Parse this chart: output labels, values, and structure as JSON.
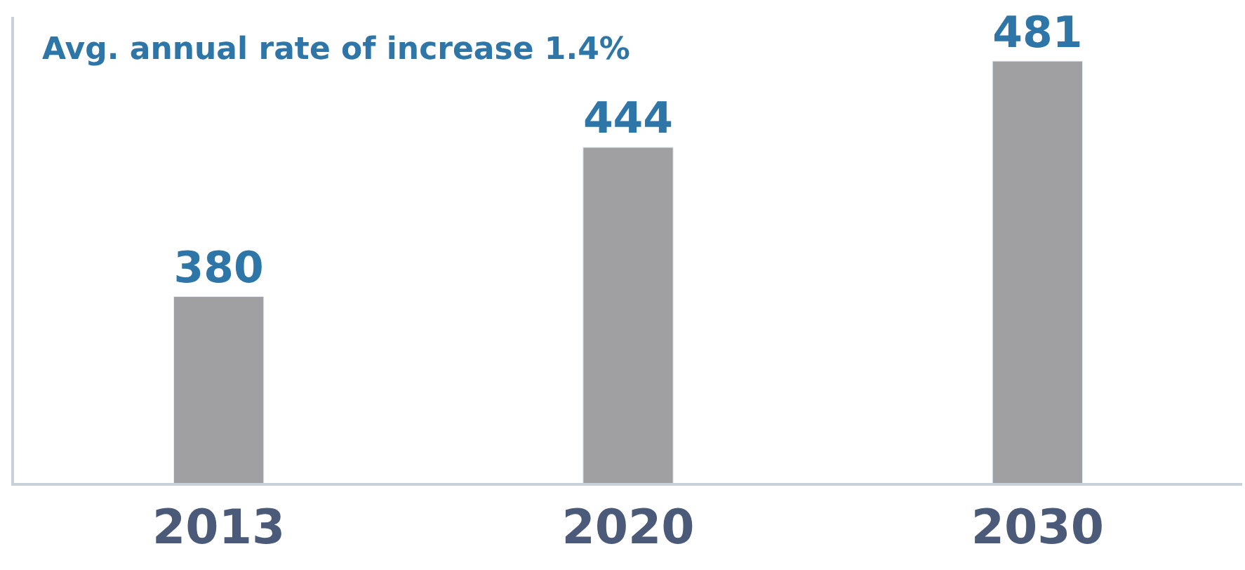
{
  "chart_data": {
    "type": "bar",
    "categories": [
      "2013",
      "2020",
      "2030"
    ],
    "values": [
      380,
      444,
      481
    ],
    "color": "#a0a0a2",
    "data_labels": true,
    "ylim": [
      300,
      500
    ],
    "tick_labels": "x",
    "annotations": [
      "Avg. annual rate of increase 1.4%"
    ]
  }
}
